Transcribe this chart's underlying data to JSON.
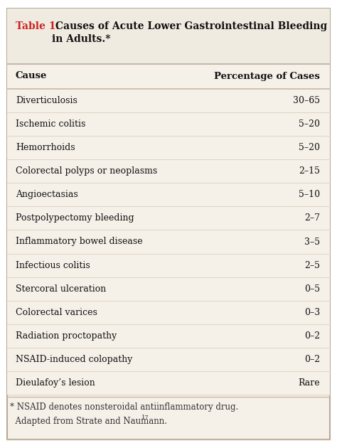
{
  "title_label": "Table 1.",
  "title_rest": " Causes of Acute Lower Gastrointestinal Bleeding\nin Adults.*",
  "col1_header": "Cause",
  "col2_header": "Percentage of Cases",
  "rows": [
    [
      "Diverticulosis",
      "30–65"
    ],
    [
      "Ischemic colitis",
      "5–20"
    ],
    [
      "Hemorrhoids",
      "5–20"
    ],
    [
      "Colorectal polyps or neoplasms",
      "2–15"
    ],
    [
      "Angioectasias",
      "5–10"
    ],
    [
      "Postpolypectomy bleeding",
      "2–7"
    ],
    [
      "Inflammatory bowel disease",
      "3–5"
    ],
    [
      "Infectious colitis",
      "2–5"
    ],
    [
      "Stercoral ulceration",
      "0–5"
    ],
    [
      "Colorectal varices",
      "0–3"
    ],
    [
      "Radiation proctopathy",
      "0–2"
    ],
    [
      "NSAID-induced colopathy",
      "0–2"
    ],
    [
      "Dieulafoy’s lesion",
      "Rare"
    ]
  ],
  "footnote_line1": "* NSAID denotes nonsteroidal antiinflammatory drug.",
  "footnote_line2": "  Adapted from Strate and Naumann.",
  "footnote_super": "17",
  "bg_color": "#f5f0e8",
  "title_bg_color": "#f0ebe0",
  "border_color": "#b8a898",
  "divider_color": "#c8b8a8",
  "title_red": "#cc2222",
  "title_black": "#111111",
  "text_color": "#111111",
  "row_sep_color": "#ddd0c0",
  "footnote_color": "#333333"
}
